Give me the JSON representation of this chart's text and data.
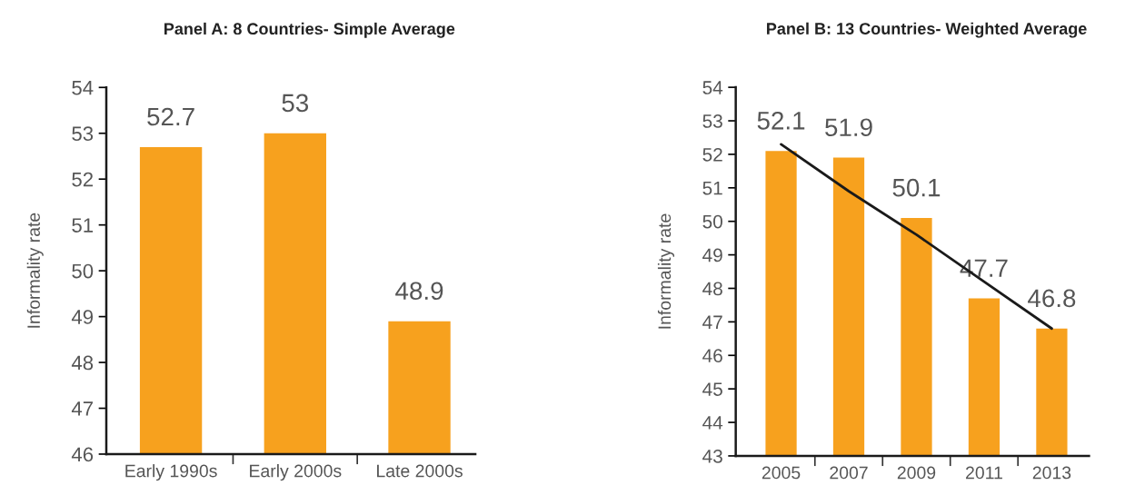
{
  "chart_data": [
    {
      "type": "bar",
      "title": "Panel A: 8 Countries- Simple Average",
      "ylabel": "Informality rate",
      "categories": [
        "Early 1990s",
        "Early 2000s",
        "Late 2000s"
      ],
      "values": [
        52.7,
        53,
        48.9
      ],
      "color": "#f7a11e",
      "data_labels": true,
      "ylim": [
        46,
        54
      ],
      "yticks": [
        46,
        47,
        48,
        49,
        50,
        51,
        52,
        53,
        54
      ]
    },
    {
      "type": "bar",
      "title": "Panel B: 13 Countries- Weighted Average",
      "ylabel": "Informality rate",
      "categories": [
        "2005",
        "2007",
        "2009",
        "2011",
        "2013"
      ],
      "series": [
        {
          "color": "#f7a11e",
          "values": [
            52.1,
            51.9,
            50.1,
            47.7,
            46.8
          ],
          "value_labels": [
            "52.1",
            "51.9",
            "50.1",
            "47.7",
            "46.8"
          ]
        },
        {
          "type": "line",
          "color": "#1a1a1a",
          "values": [
            52.3,
            50.9,
            49.6,
            48.2,
            46.8
          ]
        }
      ],
      "ylim": [
        43,
        54
      ],
      "yticks": [
        43,
        44,
        45,
        46,
        47,
        48,
        49,
        50,
        51,
        52,
        53,
        54
      ],
      "marker": "none",
      "line_style": "solid"
    }
  ]
}
